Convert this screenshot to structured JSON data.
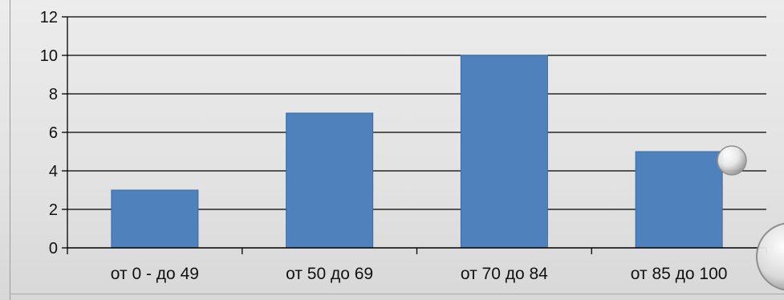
{
  "chart_data": {
    "type": "bar",
    "categories": [
      "от 0 - до 49",
      "от 50 до 69",
      "от 70 до 84",
      "от 85 до 100"
    ],
    "values": [
      3,
      7,
      10,
      5
    ],
    "ylim": [
      0,
      12
    ],
    "yticks": [
      0,
      2,
      4,
      6,
      8,
      10,
      12
    ],
    "grid": true,
    "bar_color": "#4f81bd",
    "bar_edge_color": "#3d6a9e",
    "grid_color": "#000000",
    "title": "",
    "xlabel": "",
    "ylabel": ""
  }
}
